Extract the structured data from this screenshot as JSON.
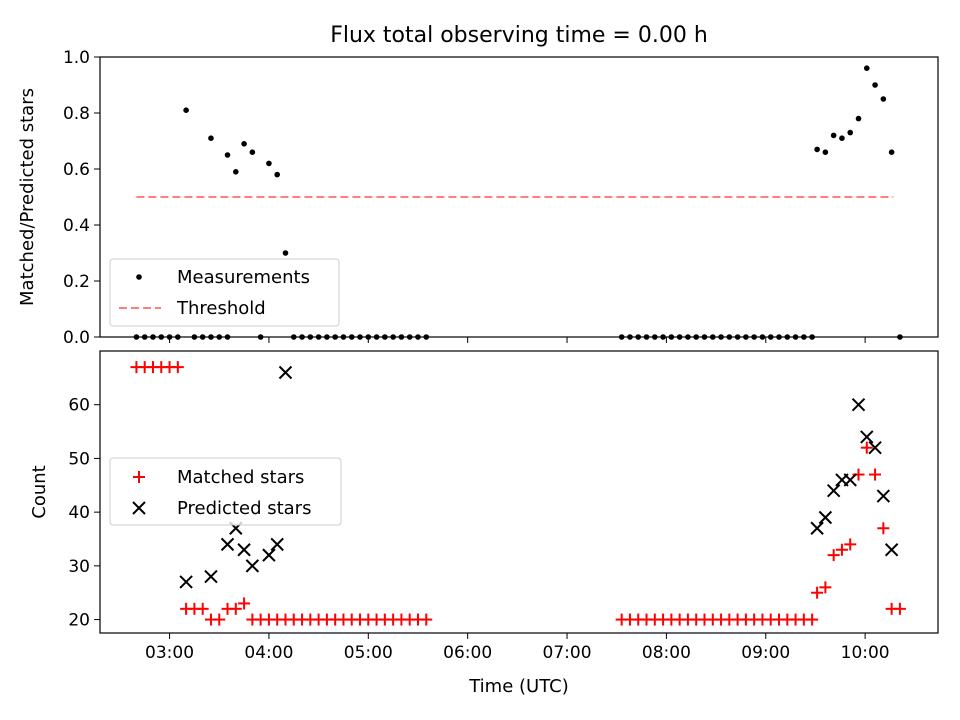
{
  "title": "Flux total observing time = 0.00 h",
  "chart_data": [
    {
      "type": "scatter",
      "title": "Flux total observing time = 0.00 h",
      "xlabel": "",
      "ylabel": "Matched/Predicted stars",
      "xlim": [
        "02:18",
        "10:44"
      ],
      "ylim": [
        0,
        1.0
      ],
      "yticks": [
        0.0,
        0.2,
        0.4,
        0.6,
        0.8,
        1.0
      ],
      "ytick_labels": [
        "0.0",
        "0.2",
        "0.4",
        "0.6",
        "0.8",
        "1.0"
      ],
      "legend": {
        "position": "lower-left"
      },
      "series": [
        {
          "name": "Measurements",
          "marker": "dot",
          "color": "#000000",
          "points": [
            [
              "02:40",
              0.0
            ],
            [
              "02:45",
              0.0
            ],
            [
              "02:50",
              0.0
            ],
            [
              "02:55",
              0.0
            ],
            [
              "03:00",
              0.0
            ],
            [
              "03:05",
              0.0
            ],
            [
              "03:10",
              0.81
            ],
            [
              "03:15",
              0.0
            ],
            [
              "03:20",
              0.0
            ],
            [
              "03:25",
              0.0
            ],
            [
              "03:30",
              0.0
            ],
            [
              "03:25",
              0.71
            ],
            [
              "03:35",
              0.0
            ],
            [
              "03:35",
              0.65
            ],
            [
              "03:40",
              0.59
            ],
            [
              "03:45",
              0.69
            ],
            [
              "03:50",
              0.66
            ],
            [
              "03:55",
              0.0
            ],
            [
              "04:00",
              0.62
            ],
            [
              "04:05",
              0.58
            ],
            [
              "04:10",
              0.3
            ],
            [
              "04:15",
              0.0
            ],
            [
              "04:20",
              0.0
            ],
            [
              "04:25",
              0.0
            ],
            [
              "04:30",
              0.0
            ],
            [
              "04:35",
              0.0
            ],
            [
              "04:40",
              0.0
            ],
            [
              "04:45",
              0.0
            ],
            [
              "04:50",
              0.0
            ],
            [
              "04:55",
              0.0
            ],
            [
              "05:00",
              0.0
            ],
            [
              "05:05",
              0.0
            ],
            [
              "05:10",
              0.0
            ],
            [
              "05:15",
              0.0
            ],
            [
              "05:20",
              0.0
            ],
            [
              "05:25",
              0.0
            ],
            [
              "05:30",
              0.0
            ],
            [
              "05:35",
              0.0
            ],
            [
              "07:33",
              0.0
            ],
            [
              "07:38",
              0.0
            ],
            [
              "07:43",
              0.0
            ],
            [
              "07:48",
              0.0
            ],
            [
              "07:53",
              0.0
            ],
            [
              "07:58",
              0.0
            ],
            [
              "08:03",
              0.0
            ],
            [
              "08:08",
              0.0
            ],
            [
              "08:13",
              0.0
            ],
            [
              "08:18",
              0.0
            ],
            [
              "08:23",
              0.0
            ],
            [
              "08:28",
              0.0
            ],
            [
              "08:33",
              0.0
            ],
            [
              "08:38",
              0.0
            ],
            [
              "08:43",
              0.0
            ],
            [
              "08:48",
              0.0
            ],
            [
              "08:53",
              0.0
            ],
            [
              "08:58",
              0.0
            ],
            [
              "09:03",
              0.0
            ],
            [
              "09:08",
              0.0
            ],
            [
              "09:13",
              0.0
            ],
            [
              "09:18",
              0.0
            ],
            [
              "09:23",
              0.0
            ],
            [
              "09:28",
              0.0
            ],
            [
              "09:31",
              0.67
            ],
            [
              "09:36",
              0.66
            ],
            [
              "09:41",
              0.72
            ],
            [
              "09:46",
              0.71
            ],
            [
              "09:51",
              0.73
            ],
            [
              "09:56",
              0.78
            ],
            [
              "10:01",
              0.96
            ],
            [
              "10:06",
              0.9
            ],
            [
              "10:11",
              0.85
            ],
            [
              "10:16",
              0.66
            ],
            [
              "10:21",
              0.0
            ]
          ]
        },
        {
          "name": "Threshold",
          "style": "dashed",
          "color": "#ff7f7f",
          "x": [
            "02:40",
            "10:17"
          ],
          "y": [
            0.5,
            0.5
          ]
        }
      ]
    },
    {
      "type": "scatter",
      "xlabel": "Time (UTC)",
      "ylabel": "Count",
      "xlim": [
        "02:18",
        "10:44"
      ],
      "ylim": [
        17.5,
        70
      ],
      "yticks": [
        20,
        30,
        40,
        50,
        60
      ],
      "ytick_labels": [
        "20",
        "30",
        "40",
        "50",
        "60"
      ],
      "xticks": [
        "03:00",
        "04:00",
        "05:00",
        "06:00",
        "07:00",
        "08:00",
        "09:00",
        "10:00"
      ],
      "xtick_labels": [
        "03:00",
        "04:00",
        "05:00",
        "06:00",
        "07:00",
        "08:00",
        "09:00",
        "10:00"
      ],
      "legend": {
        "position": "center-left"
      },
      "series": [
        {
          "name": "Matched stars",
          "marker": "plus",
          "color": "#ff0000",
          "points": [
            [
              "02:40",
              67
            ],
            [
              "02:45",
              67
            ],
            [
              "02:50",
              67
            ],
            [
              "02:55",
              67
            ],
            [
              "03:00",
              67
            ],
            [
              "03:05",
              67
            ],
            [
              "03:10",
              22
            ],
            [
              "03:15",
              22
            ],
            [
              "03:20",
              22
            ],
            [
              "03:25",
              20
            ],
            [
              "03:30",
              20
            ],
            [
              "03:35",
              22
            ],
            [
              "03:40",
              22
            ],
            [
              "03:45",
              23
            ],
            [
              "03:50",
              20
            ],
            [
              "03:55",
              20
            ],
            [
              "04:00",
              20
            ],
            [
              "04:05",
              20
            ],
            [
              "04:10",
              20
            ],
            [
              "04:15",
              20
            ],
            [
              "04:20",
              20
            ],
            [
              "04:25",
              20
            ],
            [
              "04:30",
              20
            ],
            [
              "04:35",
              20
            ],
            [
              "04:40",
              20
            ],
            [
              "04:45",
              20
            ],
            [
              "04:50",
              20
            ],
            [
              "04:55",
              20
            ],
            [
              "05:00",
              20
            ],
            [
              "05:05",
              20
            ],
            [
              "05:10",
              20
            ],
            [
              "05:15",
              20
            ],
            [
              "05:20",
              20
            ],
            [
              "05:25",
              20
            ],
            [
              "05:30",
              20
            ],
            [
              "05:35",
              20
            ],
            [
              "07:33",
              20
            ],
            [
              "07:38",
              20
            ],
            [
              "07:43",
              20
            ],
            [
              "07:48",
              20
            ],
            [
              "07:53",
              20
            ],
            [
              "07:58",
              20
            ],
            [
              "08:03",
              20
            ],
            [
              "08:08",
              20
            ],
            [
              "08:13",
              20
            ],
            [
              "08:18",
              20
            ],
            [
              "08:23",
              20
            ],
            [
              "08:28",
              20
            ],
            [
              "08:33",
              20
            ],
            [
              "08:38",
              20
            ],
            [
              "08:43",
              20
            ],
            [
              "08:48",
              20
            ],
            [
              "08:53",
              20
            ],
            [
              "08:58",
              20
            ],
            [
              "09:03",
              20
            ],
            [
              "09:08",
              20
            ],
            [
              "09:13",
              20
            ],
            [
              "09:18",
              20
            ],
            [
              "09:23",
              20
            ],
            [
              "09:28",
              20
            ],
            [
              "09:31",
              25
            ],
            [
              "09:36",
              26
            ],
            [
              "09:41",
              32
            ],
            [
              "09:46",
              33
            ],
            [
              "09:51",
              34
            ],
            [
              "09:56",
              47
            ],
            [
              "10:01",
              52
            ],
            [
              "10:06",
              47
            ],
            [
              "10:11",
              37
            ],
            [
              "10:16",
              22
            ],
            [
              "10:21",
              22
            ]
          ]
        },
        {
          "name": "Predicted stars",
          "marker": "x",
          "color": "#000000",
          "points": [
            [
              "03:10",
              27
            ],
            [
              "03:25",
              28
            ],
            [
              "03:35",
              34
            ],
            [
              "03:40",
              37
            ],
            [
              "03:45",
              33
            ],
            [
              "03:50",
              30
            ],
            [
              "04:00",
              32
            ],
            [
              "04:05",
              34
            ],
            [
              "04:10",
              66
            ],
            [
              "09:31",
              37
            ],
            [
              "09:36",
              39
            ],
            [
              "09:41",
              44
            ],
            [
              "09:46",
              46
            ],
            [
              "09:51",
              46
            ],
            [
              "09:56",
              60
            ],
            [
              "10:01",
              54
            ],
            [
              "10:06",
              52
            ],
            [
              "10:11",
              43
            ],
            [
              "10:16",
              33
            ]
          ]
        }
      ]
    }
  ]
}
